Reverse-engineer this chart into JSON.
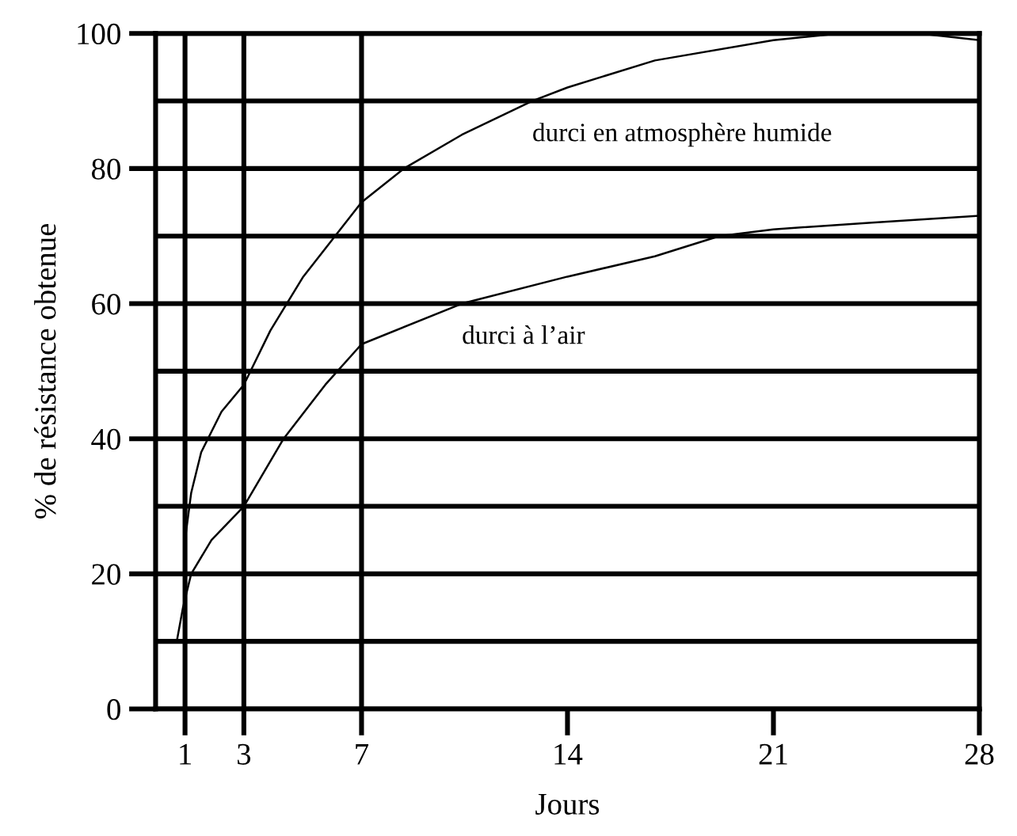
{
  "chart_data": {
    "type": "line",
    "xlabel": "Jours",
    "ylabel": "% de résistance obtenue",
    "xlim": [
      0,
      28
    ],
    "xticks": [
      1,
      3,
      7,
      14,
      21,
      28
    ],
    "ylim": [
      0,
      100
    ],
    "yticks": [
      0,
      20,
      40,
      60,
      80,
      100
    ],
    "grid": "y",
    "legend": false,
    "marker": "none",
    "line_style": "solid",
    "series": [
      {
        "name": "durci en atmosphère humide",
        "color": "#000000",
        "x": [
          1,
          1.21,
          1.55,
          2.24,
          3,
          3.9,
          5.02,
          7,
          8.44,
          10.41,
          12.8,
          14,
          16.97,
          21,
          23.26,
          25.95,
          28
        ],
        "values": [
          25,
          32,
          38,
          44,
          48,
          56,
          64,
          75,
          80,
          85,
          90,
          92,
          96,
          99,
          100,
          100,
          99
        ]
      },
      {
        "name": "durci à l’air",
        "color": "#000000",
        "x": [
          0.72,
          0.93,
          1.21,
          1.9,
          3,
          4.35,
          5.77,
          7,
          10.41,
          14,
          16.97,
          19.16,
          21,
          24.34,
          28
        ],
        "values": [
          10,
          15,
          20,
          25,
          30,
          40,
          48,
          54,
          60,
          64,
          67,
          70,
          71,
          72,
          73
        ]
      }
    ],
    "ref_lines": [
      {
        "axis": "x",
        "value": 1
      },
      {
        "axis": "x",
        "value": 3
      },
      {
        "axis": "x",
        "value": 7
      },
      {
        "axis": "y",
        "value": 10
      },
      {
        "axis": "y",
        "value": 30
      },
      {
        "axis": "y",
        "value": 50
      },
      {
        "axis": "y",
        "value": 70
      },
      {
        "axis": "y",
        "value": 90
      }
    ]
  }
}
